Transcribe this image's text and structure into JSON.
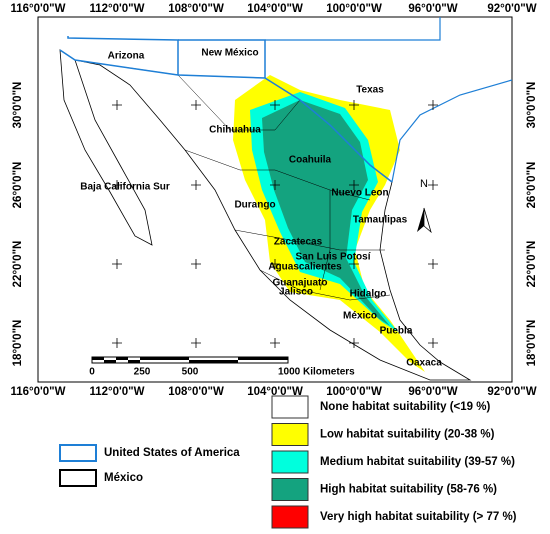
{
  "map": {
    "lon_labels": [
      "116°0'0\"W",
      "112°0'0\"W",
      "108°0'0\"W",
      "104°0'0\"W",
      "100°0'0\"W",
      "96°0'0\"W",
      "92°0'0\"W"
    ],
    "lat_labels": [
      "30°0'0\"N",
      "26°0'0\"N",
      "22°0'0\"N",
      "18°0'0\"N"
    ],
    "places": [
      "Arizona",
      "New México",
      "Texas",
      "Chihuahua",
      "Coahuila",
      "Baja California Sur",
      "Durango",
      "Nuevo Leon",
      "Tamaulipas",
      "Zacatecas",
      "San Luis Potosí",
      "Aguascalientes",
      "Guanajuato",
      "Hidalgo",
      "Jalisco",
      "México",
      "Puebla",
      "Oaxaca"
    ],
    "scale_bar": [
      "0",
      "250",
      "500",
      "1000 Kilometers"
    ],
    "north": "N"
  },
  "legend": {
    "boundaries": [
      {
        "label": "United States of America",
        "color": "#1e7fd6"
      },
      {
        "label": "México",
        "color": "#000000"
      }
    ],
    "classes": [
      {
        "label": "None habitat suitability (<19 %)",
        "color": "#ffffff"
      },
      {
        "label": "Low habitat suitability (20-38 %)",
        "color": "#ffff00"
      },
      {
        "label": "Medium habitat suitability (39-57 %)",
        "color": "#00ffdd"
      },
      {
        "label": "High habitat suitability (58-76 %)",
        "color": "#14a37f"
      },
      {
        "label": "Very high habitat suitability (> 77 %)",
        "color": "#ff0000"
      }
    ]
  }
}
